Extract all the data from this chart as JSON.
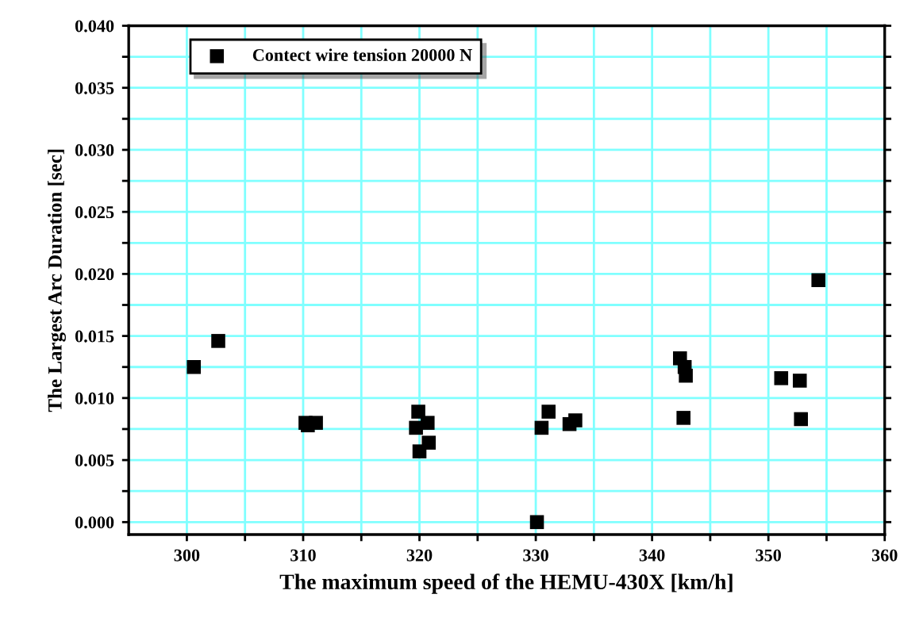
{
  "chart_data": {
    "type": "scatter",
    "xlabel": "The maximum speed of the HEMU-430X [km/h]",
    "ylabel": "The Largest Arc Duration [sec]",
    "legend": "top left",
    "grid": true,
    "marker": "square",
    "xlim": [
      295,
      360
    ],
    "ylim": [
      -0.001,
      0.04
    ],
    "xticks": [
      300,
      {
        "value": 305,
        "label": null
      },
      310,
      {
        "value": 315,
        "label": null
      },
      320,
      {
        "value": 325,
        "label": null
      },
      330,
      {
        "value": 335,
        "label": null
      },
      340,
      {
        "value": 345,
        "label": null
      },
      350,
      {
        "value": 355,
        "label": null
      },
      360
    ],
    "yticks": [
      {
        "value": 0,
        "label": "0.000"
      },
      {
        "value": 0.0025,
        "label": null
      },
      {
        "value": 0.005,
        "label": "0.005"
      },
      {
        "value": 0.0075,
        "label": null
      },
      {
        "value": 0.01,
        "label": "0.010"
      },
      {
        "value": 0.0125,
        "label": null
      },
      {
        "value": 0.015,
        "label": "0.015"
      },
      {
        "value": 0.0175,
        "label": null
      },
      {
        "value": 0.02,
        "label": "0.020"
      },
      {
        "value": 0.0225,
        "label": null
      },
      {
        "value": 0.025,
        "label": "0.025"
      },
      {
        "value": 0.0275,
        "label": null
      },
      {
        "value": 0.03,
        "label": "0.030"
      },
      {
        "value": 0.0325,
        "label": null
      },
      {
        "value": 0.035,
        "label": "0.035"
      },
      {
        "value": 0.0375,
        "label": null
      },
      {
        "value": 0.04,
        "label": "0.040"
      }
    ],
    "series": [
      {
        "name": "Contect wire tension 20000 N",
        "color": "#000000",
        "x": [
          300.6,
          302.7,
          310.2,
          310.4,
          311.1,
          319.9,
          319.7,
          320.7,
          320.0,
          320.8,
          330.1,
          330.5,
          331.1,
          332.9,
          333.4,
          342.4,
          342.8,
          342.9,
          342.7,
          351.1,
          352.7,
          352.8,
          354.3
        ],
        "values": [
          0.0125,
          0.0146,
          0.008,
          0.0078,
          0.008,
          0.0089,
          0.0076,
          0.008,
          0.0057,
          0.0064,
          0.0,
          0.0076,
          0.0089,
          0.0079,
          0.0082,
          0.0132,
          0.0125,
          0.0118,
          0.0084,
          0.0116,
          0.0114,
          0.0083,
          0.0195
        ]
      }
    ]
  }
}
